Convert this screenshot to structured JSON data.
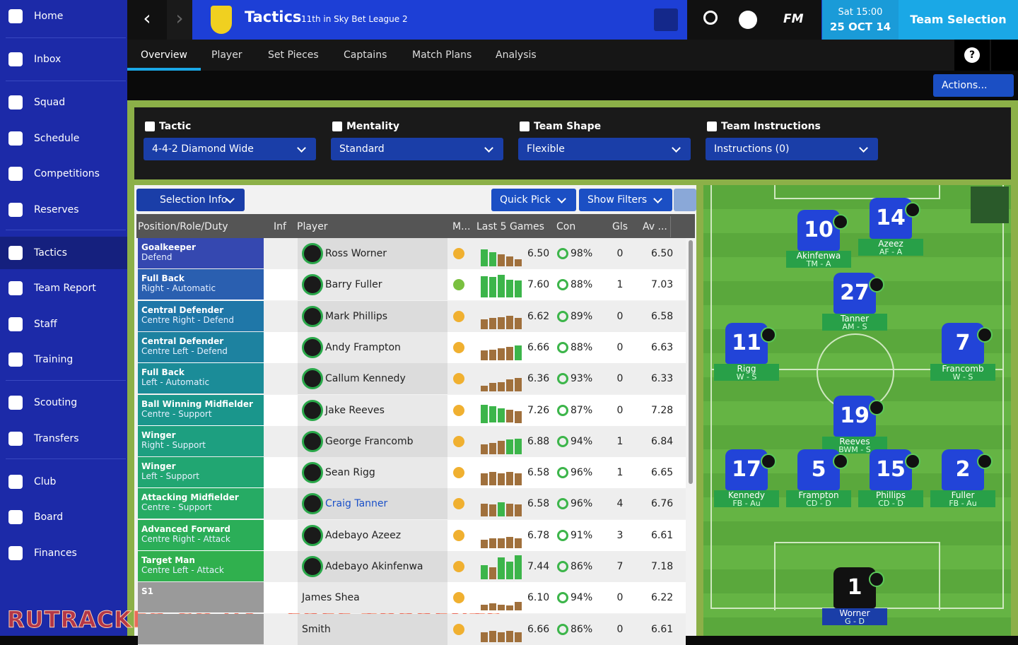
{
  "sidebar": {
    "items": [
      "Home",
      "Inbox",
      "Squad",
      "Schedule",
      "Competitions",
      "Reserves",
      "Tactics",
      "Team Report",
      "Staff",
      "Training",
      "Scouting",
      "Transfers",
      "Club",
      "Board",
      "Finances"
    ]
  },
  "header": {
    "title": "Tactics",
    "subtitle": "11th in Sky Bet League 2",
    "day": "Sat 15:00",
    "date": "25 OCT 14",
    "screen": "Team Selection",
    "brand": "FM"
  },
  "tabs": [
    "Overview",
    "Player",
    "Set Pieces",
    "Captains",
    "Match Plans",
    "Analysis"
  ],
  "actions": "Actions...",
  "tactic": [
    {
      "label": "Tactic",
      "value": "4-4-2 Diamond Wide"
    },
    {
      "label": "Mentality",
      "value": "Standard"
    },
    {
      "label": "Team Shape",
      "value": "Flexible"
    },
    {
      "label": "Team Instructions",
      "value": "Instructions (0)"
    }
  ],
  "table": {
    "buttons": [
      "Selection Info",
      "Quick Pick",
      "Show Filters"
    ],
    "headers": [
      "Position/Role/Duty",
      "Inf",
      "Player",
      "M...",
      "Last 5 Games",
      "Con",
      "Gls",
      "Av ..."
    ],
    "rows": [
      {
        "position": "Goalkeeper",
        "role": "Defend",
        "color": "#3548b0",
        "player": "Ross Worner",
        "last5": [
          7.2,
          7.0,
          6.8,
          6.6,
          6.4
        ],
        "rating": "6.50",
        "con": "98%",
        "gls": "0",
        "av": "6.50"
      },
      {
        "position": "Full Back",
        "role": "Right - Automatic",
        "color": "#2a5fb0",
        "player": "Barry Fuller",
        "last5": [
          7.6,
          7.5,
          7.7,
          7.3,
          7.2
        ],
        "rating": "7.60",
        "con": "88%",
        "gls": "1",
        "av": "7.03"
      },
      {
        "position": "Central Defender",
        "role": "Centre Right - Defend",
        "color": "#1f77a8",
        "player": "Mark Phillips",
        "last5": [
          6.6,
          6.7,
          6.8,
          6.9,
          6.7
        ],
        "rating": "6.62",
        "con": "89%",
        "gls": "0",
        "av": "6.58"
      },
      {
        "position": "Central Defender",
        "role": "Centre Left - Defend",
        "color": "#1d82a0",
        "player": "Andy Frampton",
        "last5": [
          6.6,
          6.7,
          6.8,
          6.9,
          7.0
        ],
        "rating": "6.66",
        "con": "88%",
        "gls": "0",
        "av": "6.63"
      },
      {
        "position": "Full Back",
        "role": "Left - Automatic",
        "color": "#1b8c98",
        "player": "Callum Kennedy",
        "last5": [
          6.3,
          6.5,
          6.6,
          6.8,
          6.9
        ],
        "rating": "6.36",
        "con": "93%",
        "gls": "0",
        "av": "6.33"
      },
      {
        "position": "Ball Winning Midfielder",
        "role": "Centre - Support",
        "color": "#1a968c",
        "player": "Jake Reeves",
        "last5": [
          7.3,
          7.2,
          7.0,
          6.9,
          6.8
        ],
        "rating": "7.26",
        "con": "87%",
        "gls": "0",
        "av": "7.28"
      },
      {
        "position": "Winger",
        "role": "Right - Support",
        "color": "#1d9f80",
        "player": "George Francomb",
        "last5": [
          6.6,
          6.7,
          6.9,
          7.0,
          7.1
        ],
        "rating": "6.88",
        "con": "94%",
        "gls": "1",
        "av": "6.84"
      },
      {
        "position": "Winger",
        "role": "Left - Support",
        "color": "#21a672",
        "player": "Sean Rigg",
        "last5": [
          6.8,
          6.9,
          6.8,
          6.9,
          6.8
        ],
        "rating": "6.58",
        "con": "96%",
        "gls": "1",
        "av": "6.65"
      },
      {
        "position": "Attacking Midfielder",
        "role": "Centre - Support",
        "color": "#26ab64",
        "player": "Craig Tanner",
        "last5": [
          6.9,
          6.8,
          7.0,
          6.9,
          6.8
        ],
        "rating": "6.58",
        "con": "96%",
        "gls": "4",
        "av": "6.76"
      },
      {
        "position": "Advanced Forward",
        "role": "Centre Right - Attack",
        "color": "#2bae58",
        "player": "Adebayo Azeez",
        "last5": [
          6.5,
          6.6,
          6.6,
          6.7,
          6.6
        ],
        "rating": "6.78",
        "con": "91%",
        "gls": "3",
        "av": "6.61"
      },
      {
        "position": "Target Man",
        "role": "Centre Left - Attack",
        "color": "#30b04e",
        "player": "Adebayo Akinfenwa",
        "last5": [
          7.0,
          6.8,
          7.6,
          7.3,
          7.8
        ],
        "rating": "7.44",
        "con": "86%",
        "gls": "7",
        "av": "7.18"
      },
      {
        "position": "S1",
        "color": "#9a9a9a",
        "player": "James Shea",
        "last5": [
          6.3,
          6.4,
          6.3,
          6.2,
          6.5
        ],
        "rating": "6.10",
        "con": "94%",
        "gls": "0",
        "av": "6.22"
      },
      {
        "color": "#9a9a9a",
        "player": "Smith",
        "last5": [
          6.6,
          6.7,
          6.6,
          6.7,
          6.6
        ],
        "rating": "6.66",
        "con": "86%",
        "gls": "0",
        "av": "6.61"
      }
    ]
  },
  "pitch": {
    "players": [
      {
        "number": "10",
        "name": "Akinfenwa",
        "role": "TM - A"
      },
      {
        "number": "14",
        "name": "Azeez",
        "role": "AF - A"
      },
      {
        "number": "27",
        "name": "Tanner",
        "role": "AM - S"
      },
      {
        "number": "11",
        "name": "Rigg",
        "role": "W - S"
      },
      {
        "number": "7",
        "name": "Francomb",
        "role": "W - S"
      },
      {
        "number": "19",
        "name": "Reeves",
        "role": "BWM - S"
      },
      {
        "number": "17",
        "name": "Kennedy",
        "role": "FB - Au"
      },
      {
        "number": "5",
        "name": "Frampton",
        "role": "CD - D"
      },
      {
        "number": "15",
        "name": "Phillips",
        "role": "CD - D"
      },
      {
        "number": "2",
        "name": "Fuller",
        "role": "FB - Au"
      },
      {
        "number": "1",
        "name": "Worner",
        "role": "G - D"
      }
    ]
  },
  "watermark": "RUTRACKER.CO.UA - FREE TORRENTS"
}
